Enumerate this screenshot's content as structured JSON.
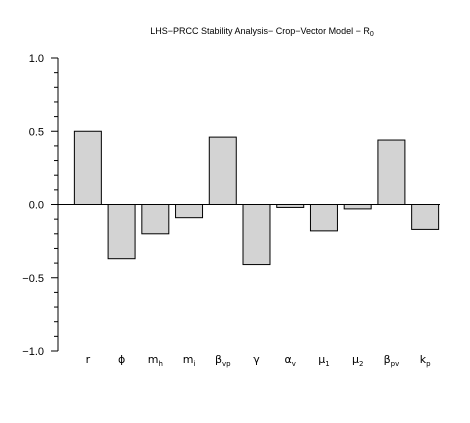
{
  "chart_data": {
    "type": "bar",
    "title": "LHS−PRCC Stability Analysis− Crop−Vector Model − R",
    "title_subscript": "0",
    "categories": [
      {
        "main": "r",
        "sub": ""
      },
      {
        "main": "ϕ",
        "sub": ""
      },
      {
        "main": "m",
        "sub": "h"
      },
      {
        "main": "m",
        "sub": "i"
      },
      {
        "main": "β",
        "sub": "vp"
      },
      {
        "main": "γ",
        "sub": ""
      },
      {
        "main": "α",
        "sub": "v"
      },
      {
        "main": "μ",
        "sub": "1"
      },
      {
        "main": "μ",
        "sub": "2"
      },
      {
        "main": "β",
        "sub": "pv"
      },
      {
        "main": "k",
        "sub": "p"
      }
    ],
    "values": [
      0.5,
      -0.37,
      -0.2,
      -0.09,
      0.46,
      -0.41,
      -0.02,
      -0.18,
      -0.03,
      0.44,
      -0.17
    ],
    "ylim": [
      -1.0,
      1.0
    ],
    "yticks_major": [
      "1.0",
      "0.5",
      "0.0",
      "−0.5",
      "−1.0"
    ],
    "ytick_major_values": [
      1.0,
      0.5,
      0.0,
      -0.5,
      -1.0
    ],
    "yticks_minor_step": 0.1,
    "xlabel": "",
    "ylabel": "",
    "grid": false,
    "bar_fill": "#d3d3d3",
    "bar_stroke": "#000000"
  }
}
